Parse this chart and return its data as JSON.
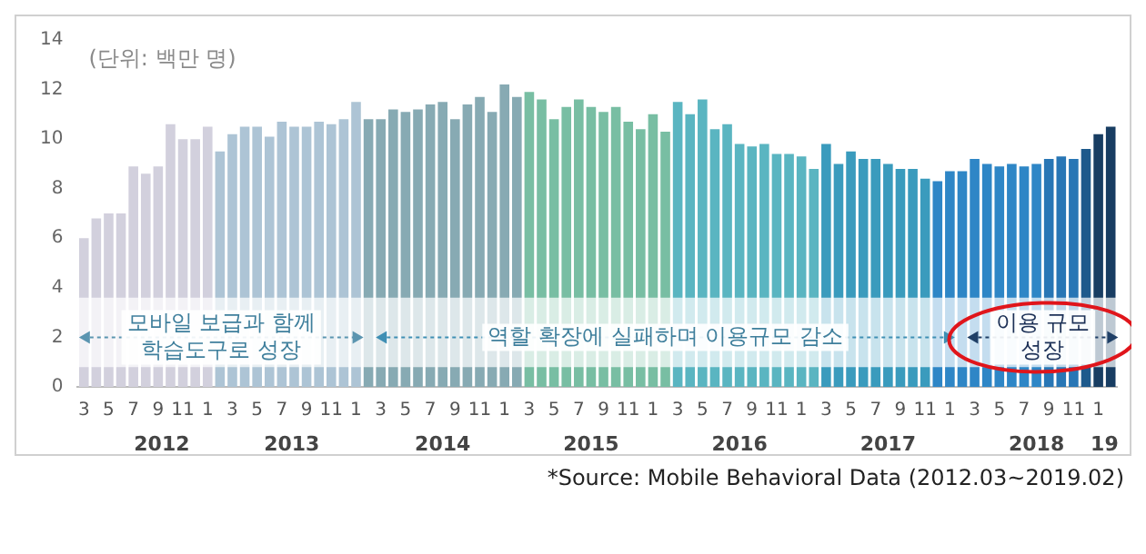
{
  "chart_data": {
    "type": "bar",
    "ylabel": "(단위: 백만 명)",
    "categories": [
      "3",
      null,
      "5",
      null,
      "7",
      null,
      "9",
      null,
      "11",
      null,
      "1",
      null,
      "3",
      null,
      "5",
      null,
      "7",
      null,
      "9",
      null,
      "11",
      null,
      "1",
      null,
      "3",
      null,
      "5",
      null,
      "7",
      null,
      "9",
      null,
      "11",
      null,
      "1",
      null,
      "3",
      null,
      "5",
      null,
      "7",
      null,
      "9",
      null,
      "11",
      null,
      "1",
      null,
      "3",
      null,
      "5",
      null,
      "7",
      null,
      "9",
      null,
      "11",
      null,
      "1",
      null,
      "3",
      null,
      "5",
      null,
      "7",
      null,
      "9",
      null,
      "11",
      null,
      "1",
      null,
      "3",
      null,
      "5",
      null,
      "7",
      null,
      "9",
      null,
      "11",
      null,
      "1",
      null
    ],
    "values": [
      6.0,
      6.8,
      7.0,
      7.0,
      8.9,
      8.6,
      8.9,
      10.6,
      10.0,
      10.0,
      10.5,
      9.5,
      10.2,
      10.5,
      10.5,
      10.1,
      10.7,
      10.5,
      10.5,
      10.7,
      10.6,
      10.8,
      11.5,
      10.8,
      10.8,
      11.2,
      11.1,
      11.2,
      11.4,
      11.5,
      10.8,
      11.4,
      11.7,
      11.1,
      12.2,
      11.7,
      11.9,
      11.6,
      10.8,
      11.3,
      11.6,
      11.3,
      11.1,
      11.3,
      10.7,
      10.4,
      11.0,
      10.3,
      11.5,
      11.0,
      11.6,
      10.4,
      10.6,
      9.8,
      9.7,
      9.8,
      9.4,
      9.4,
      9.3,
      8.8,
      9.8,
      9.0,
      9.5,
      9.2,
      9.2,
      9.0,
      8.8,
      8.8,
      8.4,
      8.3,
      8.7,
      8.7,
      9.2,
      9.0,
      8.9,
      9.0,
      8.9,
      9.0,
      9.2,
      9.3,
      9.2,
      9.6,
      10.2,
      10.5
    ],
    "colors": [
      "#d2d0dd",
      "#d2d0dd",
      "#d2d0dd",
      "#d2d0dd",
      "#d2d0dd",
      "#d2d0dd",
      "#d2d0dd",
      "#d2d0dd",
      "#d2d0dd",
      "#d2d0dd",
      "#d2d0dd",
      "#adc4d5",
      "#adc4d5",
      "#adc4d5",
      "#adc4d5",
      "#adc4d5",
      "#adc4d5",
      "#adc4d5",
      "#adc4d5",
      "#adc4d5",
      "#adc4d5",
      "#adc4d5",
      "#adc4d5",
      "#87aab3",
      "#87aab3",
      "#87aab3",
      "#87aab3",
      "#87aab3",
      "#87aab3",
      "#87aab3",
      "#87aab3",
      "#87aab3",
      "#87aab3",
      "#87aab3",
      "#87aab3",
      "#87aab3",
      "#78bea3",
      "#78bea3",
      "#78bea3",
      "#78bea3",
      "#78bea3",
      "#78bea3",
      "#78bea3",
      "#78bea3",
      "#78bea3",
      "#78bea3",
      "#78bea3",
      "#78bea3",
      "#5ab5c1",
      "#5ab5c1",
      "#5ab5c1",
      "#5ab5c1",
      "#5ab5c1",
      "#5ab5c1",
      "#5ab5c1",
      "#5ab5c1",
      "#5ab5c1",
      "#5ab5c1",
      "#5ab5c1",
      "#5ab5c1",
      "#3a9bbd",
      "#3a9bbd",
      "#3a9bbd",
      "#3a9bbd",
      "#3a9bbd",
      "#3a9bbd",
      "#3a9bbd",
      "#3a9bbd",
      "#3a9bbd",
      "#2e86c6",
      "#2e86c6",
      "#2e86c6",
      "#2e86c6",
      "#2e86c6",
      "#2e86c6",
      "#2e86c6",
      "#2e86c6",
      "#2e86c6",
      "#2876b5",
      "#2876b5",
      "#2876b5",
      "#1e5a8c",
      "#183d62",
      "#183d62"
    ],
    "bands": [
      {
        "axis": "y",
        "from": 0.8,
        "to": 3.6,
        "color": "#ffffff"
      }
    ],
    "ylim": [
      0,
      14
    ],
    "yticks": [
      0,
      2,
      4,
      6,
      8,
      10,
      12,
      14
    ],
    "grid": false,
    "annotations": [
      "모바일 보급과 함께\n학습도구로 성장",
      "역할 확장에 실패하며 이용규모 감소",
      "이용 규모\n성장",
      "2012",
      "2013",
      "2014",
      "2015",
      "2016",
      "2017",
      "2018",
      "19",
      "*Source: Mobile Behavioral Data (2012.03~2019.02)"
    ]
  }
}
